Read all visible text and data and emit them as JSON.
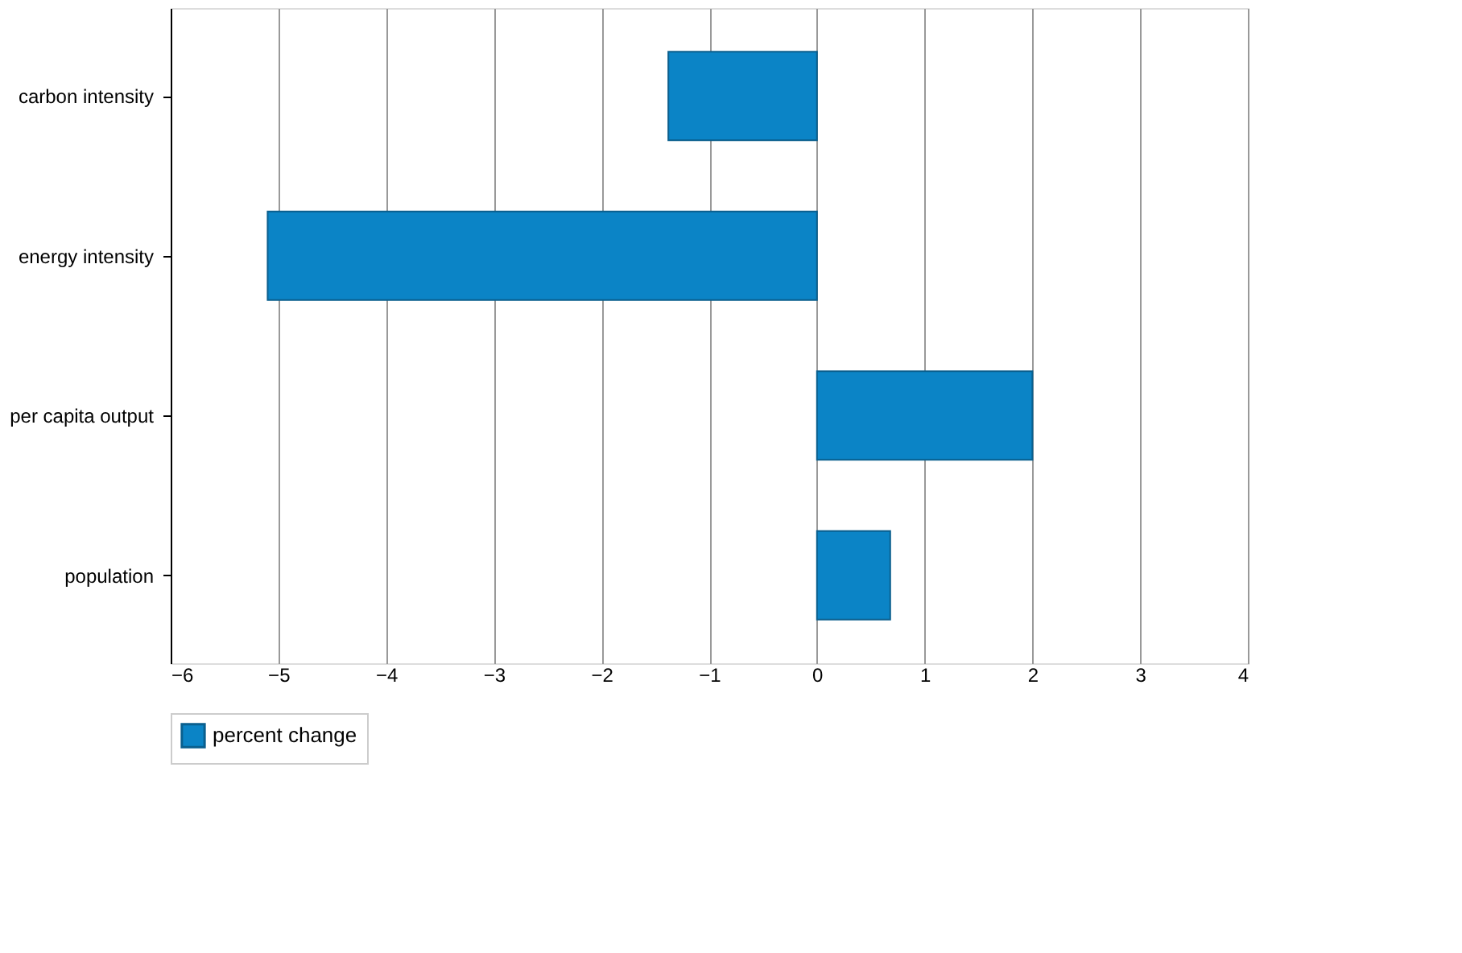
{
  "chart_data": {
    "type": "bar",
    "orientation": "horizontal",
    "categories": [
      "carbon intensity",
      "energy intensity",
      "per capita output",
      "population"
    ],
    "series": [
      {
        "name": "percent change",
        "color": "#0b84c6",
        "values": [
          -1.38,
          -5.1,
          2.0,
          0.68
        ]
      }
    ],
    "xlim": [
      -6,
      4
    ],
    "xticks": [
      -6,
      -5,
      -4,
      -3,
      -2,
      -1,
      0,
      1,
      2,
      3,
      4
    ],
    "grid": "x",
    "legend": "bottom"
  }
}
